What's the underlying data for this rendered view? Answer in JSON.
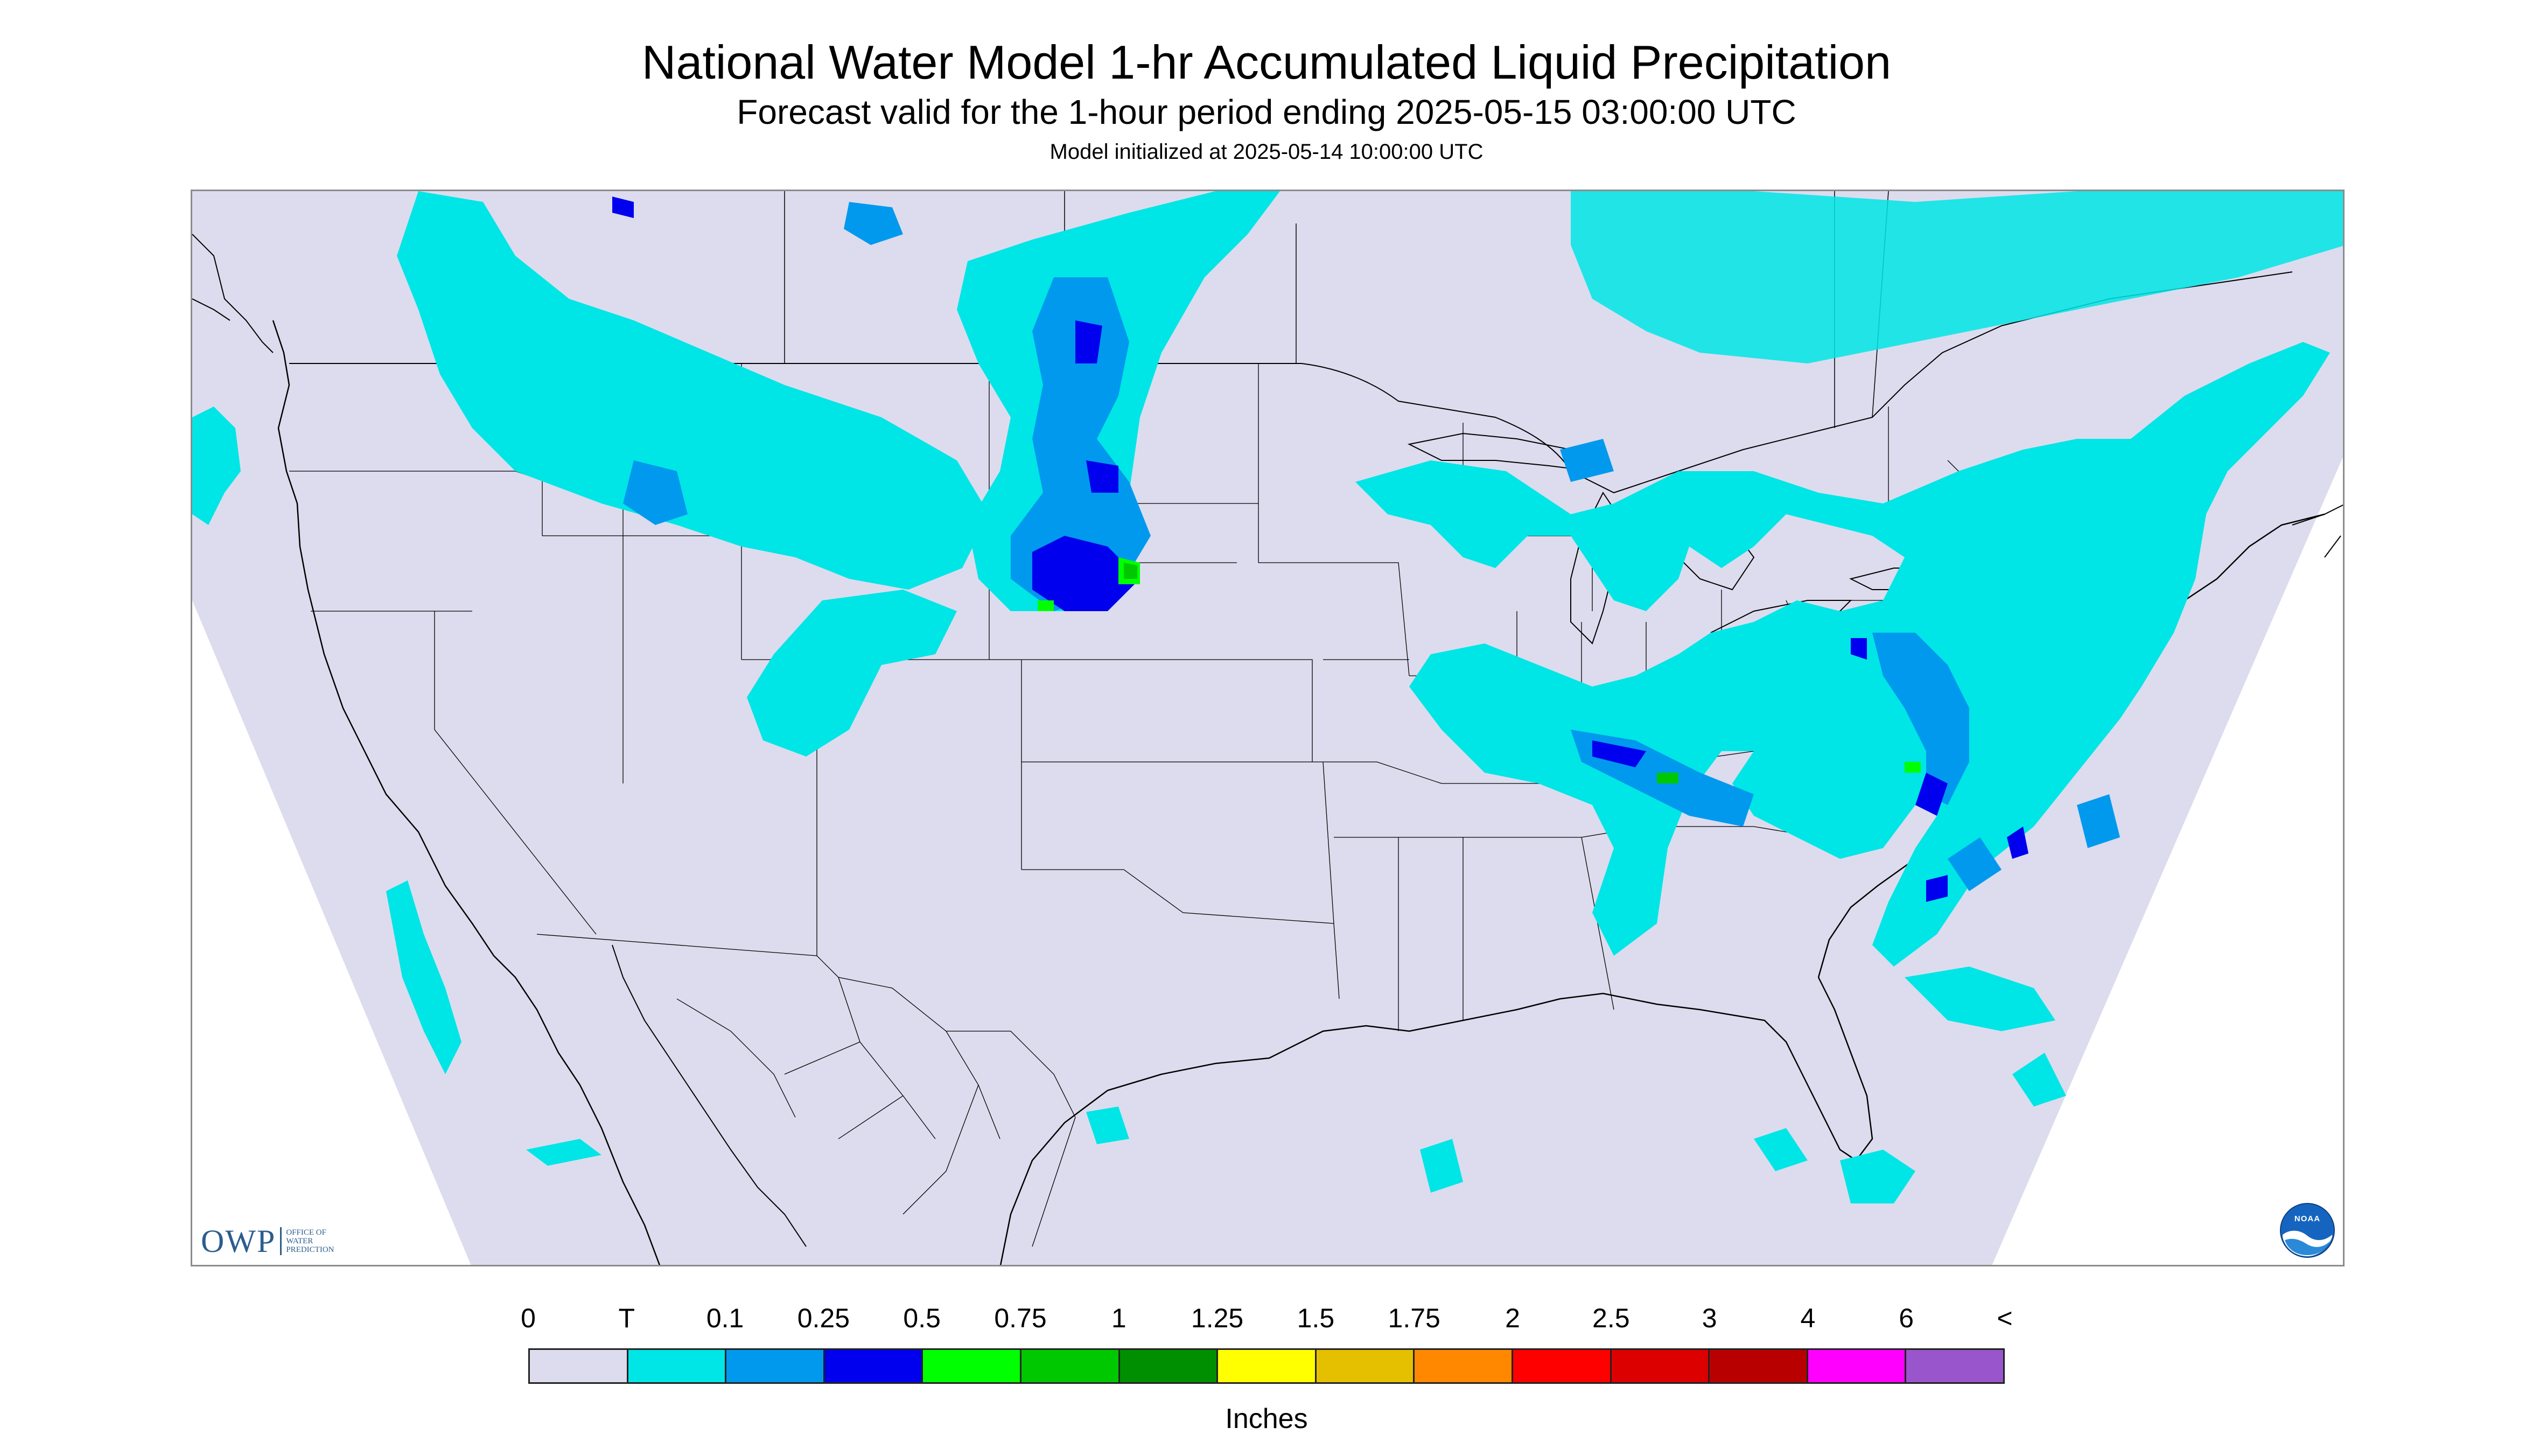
{
  "header": {
    "title": "National Water Model 1-hr Accumulated Liquid Precipitation",
    "subtitle": "Forecast valid for the 1-hour period ending 2025-05-15 03:00:00 UTC",
    "init_line": "Model initialized at 2025-05-14 10:00:00 UTC"
  },
  "map": {
    "region": "Continental United States",
    "background_color": "#dcdcee",
    "outside_domain_color": "#ffffff",
    "boundary_color": "#000000",
    "precip_areas": [
      {
        "region": "Western Washington",
        "max_category": "T"
      },
      {
        "region": "Idaho and western Montana",
        "max_category": "0.5"
      },
      {
        "region": "Western Dakotas, Wyoming and Nebraska Panhandle",
        "max_category": "1"
      },
      {
        "region": "Northern Colorado",
        "max_category": "T"
      },
      {
        "region": "Upper Great Lakes",
        "max_category": "0.25"
      },
      {
        "region": "Ohio Valley to Tennessee",
        "max_category": "0.75"
      },
      {
        "region": "Mid-Atlantic and Northeast",
        "max_category": "0.5"
      },
      {
        "region": "Carolinas coast",
        "max_category": "0.5"
      },
      {
        "region": "Southern Canada",
        "max_category": "0.1"
      },
      {
        "region": "Gulf and Atlantic waters",
        "max_category": "0.25"
      }
    ]
  },
  "logos": {
    "owp": {
      "letters": "OWP",
      "lines": [
        "Office of",
        "Water",
        "Prediction"
      ],
      "icon": "owp-logo"
    },
    "noaa": {
      "text": "NOAA",
      "icon": "noaa-logo"
    }
  },
  "legend": {
    "units": "Inches",
    "labels": [
      "0",
      "T",
      "0.1",
      "0.25",
      "0.5",
      "0.75",
      "1",
      "1.25",
      "1.5",
      "1.75",
      "2",
      "2.5",
      "3",
      "4",
      "6",
      "<"
    ],
    "colors": [
      "#dcdcee",
      "#00e5e5",
      "#0099ee",
      "#0000ee",
      "#00ff00",
      "#00c800",
      "#008f00",
      "#ffff00",
      "#e5c000",
      "#ff8800",
      "#ff0000",
      "#dd0000",
      "#b80000",
      "#ff00ff",
      "#9955cc"
    ]
  }
}
